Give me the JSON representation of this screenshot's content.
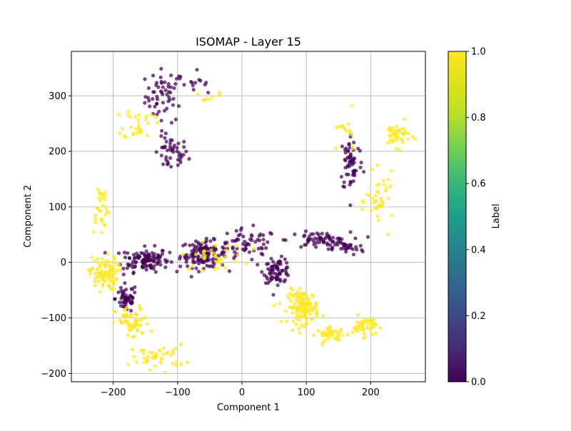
{
  "chart_data": {
    "type": "scatter",
    "title": "ISOMAP - Layer 15",
    "xlabel": "Component 1",
    "ylabel": "Component 2",
    "xlim": [
      -265,
      285
    ],
    "ylim": [
      -215,
      380
    ],
    "xticks": [
      -200,
      -100,
      0,
      100,
      200
    ],
    "yticks": [
      -200,
      -100,
      0,
      100,
      200,
      300
    ],
    "grid": true,
    "colorbar": {
      "label": "Label",
      "range": [
        0.0,
        1.0
      ],
      "ticks": [
        "0.0",
        "0.2",
        "0.4",
        "0.6",
        "0.8",
        "1.0"
      ],
      "colormap": "viridis"
    },
    "series": [
      {
        "label_value": 0.0,
        "color": "#440154",
        "clusters": [
          {
            "center": [
              -120,
              300
            ],
            "spread": [
              25,
              40
            ],
            "n": 55
          },
          {
            "center": [
              -110,
              195
            ],
            "spread": [
              22,
              25
            ],
            "n": 45
          },
          {
            "center": [
              -150,
              5
            ],
            "spread": [
              30,
              18
            ],
            "n": 110
          },
          {
            "center": [
              -60,
              15
            ],
            "spread": [
              30,
              20
            ],
            "n": 130
          },
          {
            "center": [
              -180,
              -65
            ],
            "spread": [
              14,
              22
            ],
            "n": 55
          },
          {
            "center": [
              10,
              30
            ],
            "spread": [
              40,
              25
            ],
            "n": 60
          },
          {
            "center": [
              55,
              -15
            ],
            "spread": [
              18,
              18
            ],
            "n": 70
          },
          {
            "center": [
              120,
              40
            ],
            "spread": [
              40,
              12
            ],
            "n": 65
          },
          {
            "center": [
              165,
              25
            ],
            "spread": [
              20,
              10
            ],
            "n": 25
          },
          {
            "center": [
              170,
              180
            ],
            "spread": [
              15,
              45
            ],
            "n": 60
          },
          {
            "center": [
              -80,
              320
            ],
            "spread": [
              30,
              25
            ],
            "n": 15
          }
        ]
      },
      {
        "label_value": 1.0,
        "color": "#fde725",
        "clusters": [
          {
            "center": [
              -160,
              250
            ],
            "spread": [
              20,
              25
            ],
            "n": 30
          },
          {
            "center": [
              -220,
              100
            ],
            "spread": [
              12,
              40
            ],
            "n": 30
          },
          {
            "center": [
              -215,
              -20
            ],
            "spread": [
              18,
              25
            ],
            "n": 90
          },
          {
            "center": [
              -170,
              -110
            ],
            "spread": [
              22,
              25
            ],
            "n": 60
          },
          {
            "center": [
              -130,
              -170
            ],
            "spread": [
              35,
              18
            ],
            "n": 45
          },
          {
            "center": [
              -45,
              10
            ],
            "spread": [
              40,
              20
            ],
            "n": 35
          },
          {
            "center": [
              95,
              -80
            ],
            "spread": [
              20,
              25
            ],
            "n": 130
          },
          {
            "center": [
              140,
              -130
            ],
            "spread": [
              20,
              10
            ],
            "n": 45
          },
          {
            "center": [
              190,
              -115
            ],
            "spread": [
              15,
              15
            ],
            "n": 50
          },
          {
            "center": [
              240,
              230
            ],
            "spread": [
              18,
              18
            ],
            "n": 45
          },
          {
            "center": [
              215,
              110
            ],
            "spread": [
              18,
              40
            ],
            "n": 40
          },
          {
            "center": [
              160,
              230
            ],
            "spread": [
              20,
              30
            ],
            "n": 15
          },
          {
            "center": [
              -60,
              295
            ],
            "spread": [
              25,
              10
            ],
            "n": 8
          }
        ]
      }
    ]
  }
}
